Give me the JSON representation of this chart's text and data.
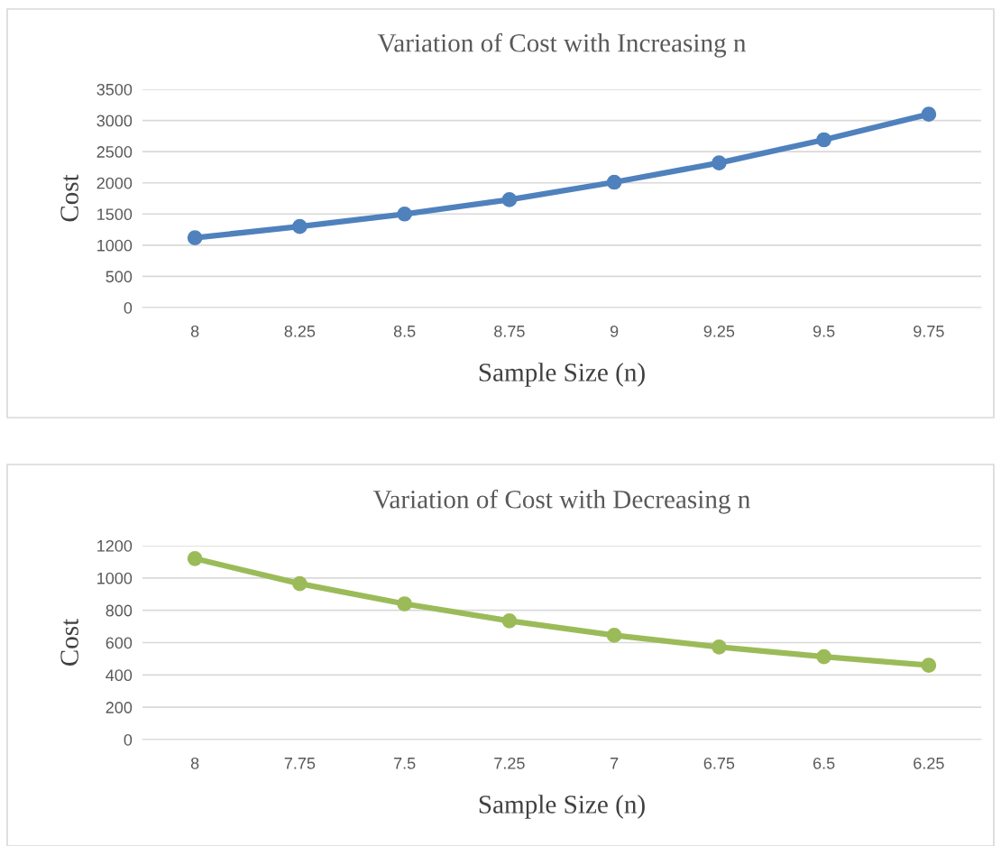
{
  "chart_data": [
    {
      "type": "line",
      "title": "Variation of Cost with Increasing n",
      "xlabel": "Sample Size (n)",
      "ylabel": "Cost",
      "categories": [
        "8",
        "8.25",
        "8.5",
        "8.75",
        "9",
        "9.25",
        "9.5",
        "9.75"
      ],
      "series": [
        {
          "color": "#4f81bd",
          "values": [
            1120,
            1300,
            1500,
            1730,
            2010,
            2320,
            2690,
            3100
          ]
        }
      ],
      "ylim": [
        0,
        3500
      ],
      "yticks": [
        0,
        500,
        1000,
        1500,
        2000,
        2500,
        3000,
        3500
      ],
      "grid": "y",
      "marker": "circle"
    },
    {
      "type": "line",
      "title": "Variation of Cost with Decreasing n",
      "xlabel": "Sample Size (n)",
      "ylabel": "Cost",
      "categories": [
        "8",
        "7.75",
        "7.5",
        "7.25",
        "7",
        "6.75",
        "6.5",
        "6.25"
      ],
      "series": [
        {
          "color": "#9bbb59",
          "values": [
            1120,
            965,
            840,
            735,
            645,
            573,
            513,
            460
          ]
        }
      ],
      "ylim": [
        0,
        1200
      ],
      "yticks": [
        0,
        200,
        400,
        600,
        800,
        1000,
        1200
      ],
      "grid": "y",
      "marker": "circle"
    }
  ]
}
